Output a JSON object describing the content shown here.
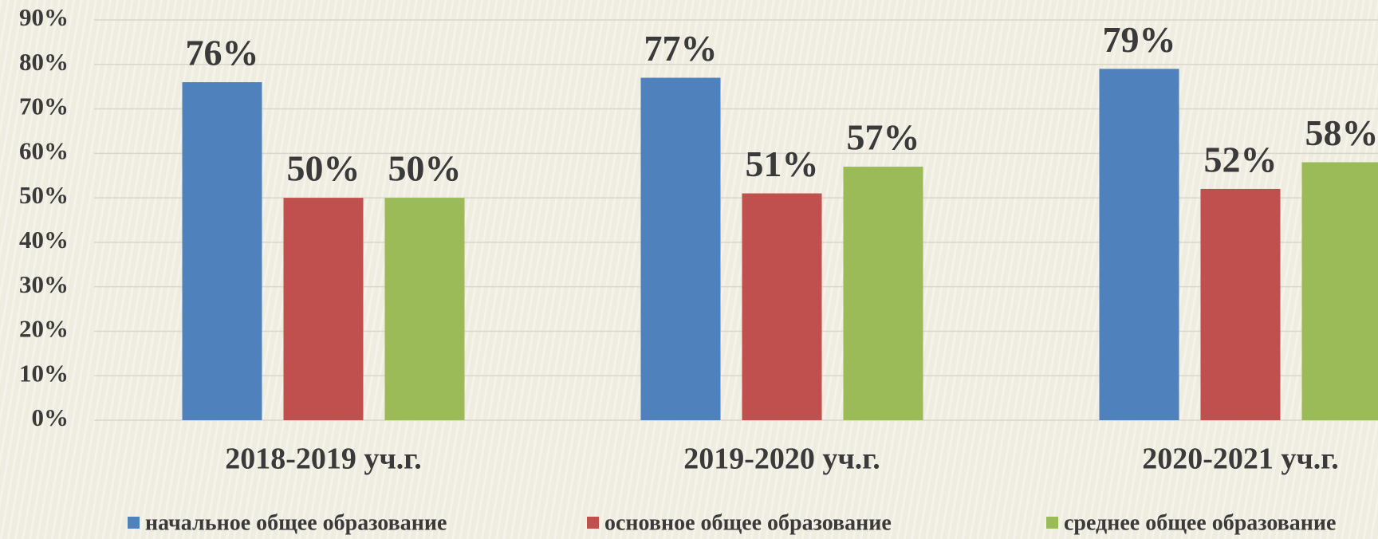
{
  "chart_data": {
    "type": "bar",
    "categories": [
      "2018-2019 уч.г.",
      "2019-2020 уч.г.",
      "2020-2021 уч.г."
    ],
    "series": [
      {
        "name": "начальное общее образование",
        "color": "#4f81bd",
        "values": [
          76,
          77,
          79
        ],
        "value_labels": [
          "76%",
          "77%",
          "79%"
        ]
      },
      {
        "name": "основное общее образование",
        "color": "#c0504d",
        "values": [
          50,
          51,
          52
        ],
        "value_labels": [
          "50%",
          "51%",
          "52%"
        ]
      },
      {
        "name": "среднее общее образование",
        "color": "#9bbb59",
        "values": [
          50,
          57,
          58
        ],
        "value_labels": [
          "50%",
          "57%",
          "58%"
        ]
      }
    ],
    "ylim": [
      0,
      90
    ],
    "yticks": [
      {
        "value": 0,
        "label": "0%"
      },
      {
        "value": 10,
        "label": "10%"
      },
      {
        "value": 20,
        "label": "20%"
      },
      {
        "value": 30,
        "label": "30%"
      },
      {
        "value": 40,
        "label": "40%"
      },
      {
        "value": 50,
        "label": "50%"
      },
      {
        "value": 60,
        "label": "60%"
      },
      {
        "value": 70,
        "label": "70%"
      },
      {
        "value": 80,
        "label": "80%"
      },
      {
        "value": 90,
        "label": "90%"
      }
    ],
    "grid": true,
    "legend": "bottom"
  }
}
